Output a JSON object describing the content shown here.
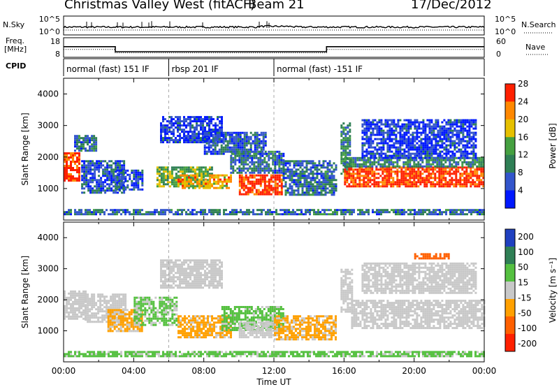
{
  "header": {
    "title": "Christmas Valley West (fitACF)",
    "beam": "Beam 21",
    "date": "17/Dec/2012"
  },
  "strips": {
    "nsky_label": "N.Sky",
    "nsearch_label": "N.Search",
    "nsky_ticks": [
      "10^5",
      "10^0"
    ],
    "nsearch_ticks": [
      "10^5",
      "10^0"
    ],
    "freq_label_line1": "Freq.",
    "freq_label_line2": "[MHz]",
    "freq_ticks": [
      "18",
      "8"
    ],
    "nave_label": "Nave",
    "nave_ticks": [
      "60",
      "0"
    ],
    "cpid_label": "CPID",
    "cpid_segments": [
      {
        "label": "normal (fast) 151 IF",
        "start_h": 0,
        "end_h": 6
      },
      {
        "label": "rbsp 201 IF",
        "start_h": 6,
        "end_h": 12
      },
      {
        "label": "normal (fast) -151 IF",
        "start_h": 12,
        "end_h": 24
      }
    ],
    "freq_series": [
      {
        "h": 0,
        "mhz": 13.5
      },
      {
        "h": 2.95,
        "mhz": 13.5
      },
      {
        "h": 2.95,
        "mhz": 10.5
      },
      {
        "h": 15.0,
        "mhz": 10.5
      },
      {
        "h": 15.0,
        "mhz": 13.5
      },
      {
        "h": 24,
        "mhz": 13.5
      }
    ],
    "nave_series": [
      {
        "h": 0,
        "n": 25
      },
      {
        "h": 2.95,
        "n": 25
      },
      {
        "h": 2.95,
        "n": 12
      },
      {
        "h": 15.0,
        "n": 12
      },
      {
        "h": 15.0,
        "n": 25
      },
      {
        "h": 24,
        "n": 25
      }
    ]
  },
  "chart_data": [
    {
      "type": "heatmap",
      "name": "power",
      "ylabel": "Slant Range [km]",
      "colorbar_label": "Power [dB]",
      "ylim": [
        0,
        4500
      ],
      "y_ticks": [
        "1000",
        "2000",
        "3000",
        "4000"
      ],
      "colorbar_ticks": [
        "4",
        "8",
        "12",
        "16",
        "20",
        "24",
        "28"
      ],
      "colors": [
        "#0018ff",
        "#3355cc",
        "#2f7f55",
        "#45a040",
        "#e6c000",
        "#ff8800",
        "#ff2000"
      ],
      "regions": [
        {
          "h": [
            0.0,
            0.9
          ],
          "r": [
            1250,
            2150
          ],
          "p": 28
        },
        {
          "h": [
            0.6,
            1.8
          ],
          "r": [
            2200,
            2700
          ],
          "p": 10
        },
        {
          "h": [
            1.0,
            3.5
          ],
          "r": [
            900,
            1900
          ],
          "p": 8
        },
        {
          "h": [
            3.0,
            4.5
          ],
          "r": [
            1000,
            1600
          ],
          "p": 8
        },
        {
          "h": [
            5.5,
            9.0
          ],
          "r": [
            2500,
            3300
          ],
          "p": 6
        },
        {
          "h": [
            8.0,
            11.5
          ],
          "r": [
            2100,
            2800
          ],
          "p": 8
        },
        {
          "h": [
            5.3,
            8.5
          ],
          "r": [
            1100,
            1700
          ],
          "p": 16
        },
        {
          "h": [
            6.5,
            9.5
          ],
          "r": [
            1050,
            1450
          ],
          "p": 22
        },
        {
          "h": [
            9.5,
            12.5
          ],
          "r": [
            1500,
            2200
          ],
          "p": 10
        },
        {
          "h": [
            10.0,
            12.5
          ],
          "r": [
            850,
            1450
          ],
          "p": 28
        },
        {
          "h": [
            12.5,
            15.5
          ],
          "r": [
            800,
            1900
          ],
          "p": 10
        },
        {
          "h": [
            15.8,
            16.3
          ],
          "r": [
            1500,
            3100
          ],
          "p": 12
        },
        {
          "h": [
            16.0,
            24.0
          ],
          "r": [
            1050,
            1700
          ],
          "p": 28
        },
        {
          "h": [
            16.0,
            24.0
          ],
          "r": [
            1700,
            2000
          ],
          "p": 12
        },
        {
          "h": [
            17.0,
            23.5
          ],
          "r": [
            2000,
            3200
          ],
          "p": 6
        },
        {
          "h": [
            0.0,
            24.0
          ],
          "r": [
            200,
            350
          ],
          "p": 10
        }
      ]
    },
    {
      "type": "heatmap",
      "name": "velocity",
      "xlabel": "Time UT",
      "ylabel": "Slant Range [km]",
      "colorbar_label": "Velocity [m s⁻¹]",
      "ylim": [
        0,
        4500
      ],
      "y_ticks": [
        "1000",
        "2000",
        "3000",
        "4000"
      ],
      "x_ticks": [
        "00:00",
        "04:00",
        "08:00",
        "12:00",
        "16:00",
        "20:00",
        "00:00"
      ],
      "colorbar_ticks": [
        "200",
        "100",
        "50",
        "15",
        "-15",
        "-50",
        "-100",
        "-200"
      ],
      "colors": [
        "#2040c0",
        "#2f7f55",
        "#55c040",
        "#c8c8c8",
        "#ffa000",
        "#ff6000",
        "#ff2000"
      ],
      "regions": [
        {
          "h": [
            0.0,
            1.2
          ],
          "r": [
            1400,
            2300
          ],
          "v": 0
        },
        {
          "h": [
            1.2,
            3.5
          ],
          "r": [
            1300,
            2200
          ],
          "v": 0
        },
        {
          "h": [
            2.5,
            4.5
          ],
          "r": [
            1000,
            1700
          ],
          "v": -40
        },
        {
          "h": [
            4.0,
            6.5
          ],
          "r": [
            1200,
            2100
          ],
          "v": 40
        },
        {
          "h": [
            5.5,
            9.0
          ],
          "r": [
            2400,
            3300
          ],
          "v": 0
        },
        {
          "h": [
            6.5,
            9.5
          ],
          "r": [
            800,
            1500
          ],
          "v": -45
        },
        {
          "h": [
            9.0,
            12.5
          ],
          "r": [
            1000,
            1800
          ],
          "v": 40
        },
        {
          "h": [
            10.0,
            12.0
          ],
          "r": [
            800,
            1300
          ],
          "v": 0
        },
        {
          "h": [
            12.0,
            15.5
          ],
          "r": [
            700,
            1500
          ],
          "v": -40
        },
        {
          "h": [
            15.8,
            16.4
          ],
          "r": [
            1600,
            3000
          ],
          "v": 0
        },
        {
          "h": [
            16.4,
            24.0
          ],
          "r": [
            1100,
            2000
          ],
          "v": 0
        },
        {
          "h": [
            17.0,
            23.5
          ],
          "r": [
            2200,
            3200
          ],
          "v": 0
        },
        {
          "h": [
            20.0,
            22.0
          ],
          "r": [
            3300,
            3500
          ],
          "v": -120
        },
        {
          "h": [
            0.0,
            24.0
          ],
          "r": [
            200,
            350
          ],
          "v": 40
        }
      ]
    }
  ]
}
